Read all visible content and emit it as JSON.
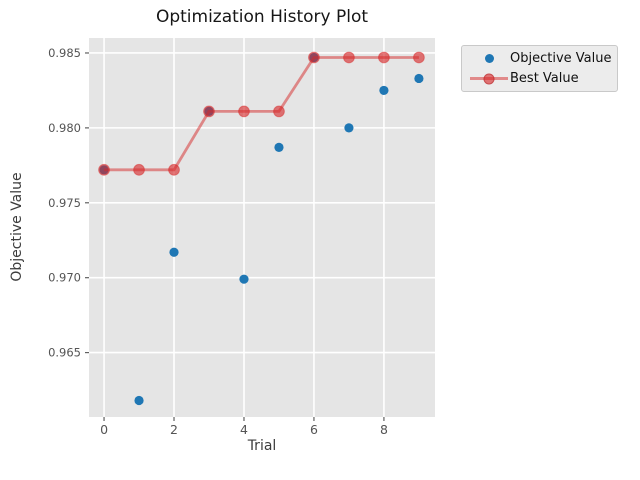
{
  "chart_data": {
    "type": "scatter",
    "title": "Optimization History Plot",
    "xlabel": "Trial",
    "ylabel": "Objective Value",
    "x": [
      0,
      1,
      2,
      3,
      4,
      5,
      6,
      7,
      8,
      9
    ],
    "series": [
      {
        "name": "Objective Value",
        "type": "scatter",
        "color": "#1f77b4",
        "marker_radius": 4.6,
        "values": [
          0.9772,
          0.9618,
          0.9717,
          0.9811,
          0.9699,
          0.9787,
          0.9847,
          0.98,
          0.9825,
          0.9833
        ]
      },
      {
        "name": "Best Value",
        "type": "line+marker",
        "color": "#d62728",
        "line_alpha": 0.5,
        "marker_alpha": 0.62,
        "marker_edge_alpha": 0.45,
        "line_width": 2.8,
        "marker_radius": 5.4,
        "values": [
          0.9772,
          0.9772,
          0.9772,
          0.9811,
          0.9811,
          0.9811,
          0.9847,
          0.9847,
          0.9847,
          0.9847
        ]
      }
    ],
    "xlim": [
      -0.43,
      9.46
    ],
    "ylim": [
      0.9607,
      0.986
    ],
    "xticks": [
      {
        "v": 0,
        "label": "0"
      },
      {
        "v": 2,
        "label": "2"
      },
      {
        "v": 4,
        "label": "4"
      },
      {
        "v": 6,
        "label": "6"
      },
      {
        "v": 8,
        "label": "8"
      }
    ],
    "yticks": [
      {
        "v": 0.965,
        "label": "0.965"
      },
      {
        "v": 0.97,
        "label": "0.970"
      },
      {
        "v": 0.975,
        "label": "0.975"
      },
      {
        "v": 0.98,
        "label": "0.980"
      },
      {
        "v": 0.985,
        "label": "0.985"
      }
    ],
    "grid": true,
    "legend_position": "outside-top-right",
    "colors": {
      "plot_bg": "#e5e5e5",
      "grid": "#ffffff",
      "tick": "#606060",
      "tick_label": "#545454"
    }
  }
}
